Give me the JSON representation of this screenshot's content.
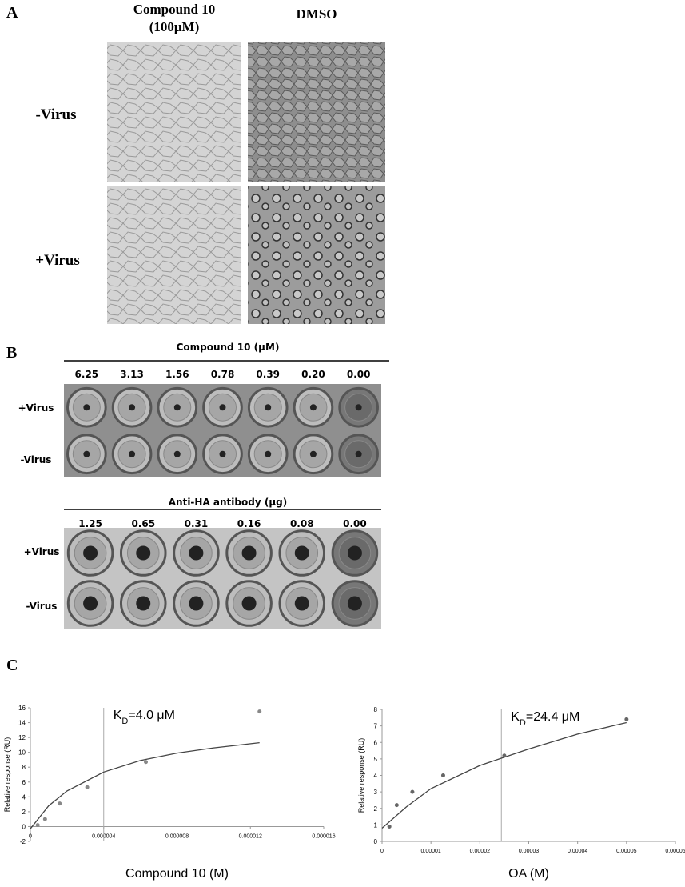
{
  "panel_a": {
    "label": "A",
    "column_1": [
      "Compound 10",
      "(100μM)"
    ],
    "column_2": "DMSO",
    "rows": [
      "-Virus",
      "+Virus"
    ]
  },
  "panel_b": {
    "label": "B",
    "plate_1": {
      "title": "Compound 10 (μM)",
      "concentrations": [
        "6.25",
        "3.13",
        "1.56",
        "0.78",
        "0.39",
        "0.20",
        "0.00"
      ],
      "rows": [
        "+Virus",
        "-Virus"
      ]
    },
    "plate_2": {
      "title": "Anti-HA antibody (μg)",
      "concentrations": [
        "1.25",
        "0.65",
        "0.31",
        "0.16",
        "0.08",
        "0.00"
      ],
      "rows": [
        "+Virus",
        "-Virus"
      ]
    }
  },
  "panel_c": {
    "label": "C"
  },
  "chart_data": [
    {
      "type": "scatter",
      "xlabel": "Compound 10 (M)",
      "ylabel": "Relative response (RU)",
      "annotation": {
        "main": "K",
        "sub": "D",
        "rest": "=4.0 μM"
      },
      "kd_line_x": 4e-06,
      "xlim": [
        0,
        1.6e-05
      ],
      "xticks": [
        0,
        {
          "value": 4e-06,
          "label": "0.000004"
        },
        {
          "value": 8e-06,
          "label": "0.000008"
        },
        {
          "value": 1.2e-05,
          "label": "0.000012"
        },
        {
          "value": 1.6e-05,
          "label": "0.000016"
        }
      ],
      "ylim": [
        -2,
        16
      ],
      "yticks": [
        -2,
        0,
        2,
        4,
        6,
        8,
        10,
        12,
        14,
        16
      ],
      "points": {
        "color": "#888888",
        "x": [
          4e-07,
          8e-07,
          1.6e-06,
          3.1e-06,
          6.3e-06,
          1.25e-05
        ],
        "values": [
          0.2,
          1,
          3.1,
          5.3,
          8.7,
          15.5
        ]
      },
      "fit": {
        "color": "#444444",
        "x": [
          0,
          1e-06,
          2e-06,
          4e-06,
          6e-06,
          8e-06,
          1e-05,
          1.25e-05
        ],
        "values": [
          -0.3,
          2.8,
          4.8,
          7.35,
          8.9,
          9.9,
          10.6,
          11.3
        ]
      }
    },
    {
      "type": "scatter",
      "xlabel": "OA (M)",
      "ylabel": "Relative response (RU)",
      "annotation": {
        "main": "K",
        "sub": "D",
        "rest": "=24.4 μM"
      },
      "kd_line_x": 2.44e-05,
      "xlim": [
        0,
        6e-05
      ],
      "xticks": [
        0,
        {
          "value": 1e-05,
          "label": "0.00001"
        },
        {
          "value": 2e-05,
          "label": "0.00002"
        },
        {
          "value": 3e-05,
          "label": "0.00003"
        },
        {
          "value": 4e-05,
          "label": "0.00004"
        },
        {
          "value": 5e-05,
          "label": "0.00005"
        },
        {
          "value": 6e-05,
          "label": "0.00006"
        }
      ],
      "ylim": [
        0,
        8
      ],
      "yticks": [
        0,
        1,
        2,
        3,
        4,
        5,
        6,
        7,
        8
      ],
      "points": {
        "color": "#666666",
        "x": [
          1.5e-06,
          3e-06,
          6.2e-06,
          1.25e-05,
          2.5e-05,
          5e-05
        ],
        "values": [
          0.9,
          2.2,
          3.0,
          4.0,
          5.2,
          7.4
        ]
      },
      "fit": {
        "color": "#444444",
        "x": [
          0,
          5e-06,
          1e-05,
          2e-05,
          3e-05,
          4e-05,
          5e-05
        ],
        "values": [
          0.8,
          2.1,
          3.2,
          4.6,
          5.6,
          6.5,
          7.2
        ]
      }
    }
  ]
}
